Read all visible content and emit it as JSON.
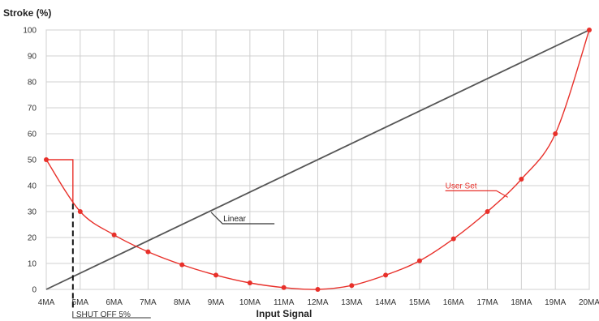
{
  "chart_data": {
    "type": "line",
    "ylabel": "Stroke (%)",
    "xlabel": "Input Signal",
    "categories": [
      "4MA",
      "5MA",
      "6MA",
      "7MA",
      "8MA",
      "9MA",
      "10MA",
      "11MA",
      "12MA",
      "13MA",
      "14MA",
      "15MA",
      "16MA",
      "17MA",
      "18MA",
      "19MA",
      "20MA"
    ],
    "yticks": [
      "0",
      "10",
      "20",
      "30",
      "40",
      "50",
      "60",
      "70",
      "80",
      "90",
      "100"
    ],
    "ylim": [
      0,
      100
    ],
    "grid": true,
    "series": [
      {
        "name": "Linear",
        "color": "#555555",
        "x": [
          4,
          20
        ],
        "y": [
          0,
          100
        ]
      },
      {
        "name": "User Set",
        "color": "#e8302a",
        "x": [
          5,
          6,
          7,
          8,
          9,
          10,
          11,
          12,
          13,
          14,
          15,
          16,
          17,
          18,
          19,
          20
        ],
        "y": [
          30,
          21,
          14.5,
          9.5,
          5.5,
          2.5,
          0.7,
          0,
          1.5,
          5.5,
          11,
          19.5,
          30,
          42.5,
          60,
          100
        ]
      }
    ],
    "start_point": {
      "x": 4,
      "y": 50
    },
    "annotations": {
      "linear_label": "Linear",
      "user_set_label": "User Set",
      "shutoff_label": "SHUT OFF 5%"
    }
  }
}
